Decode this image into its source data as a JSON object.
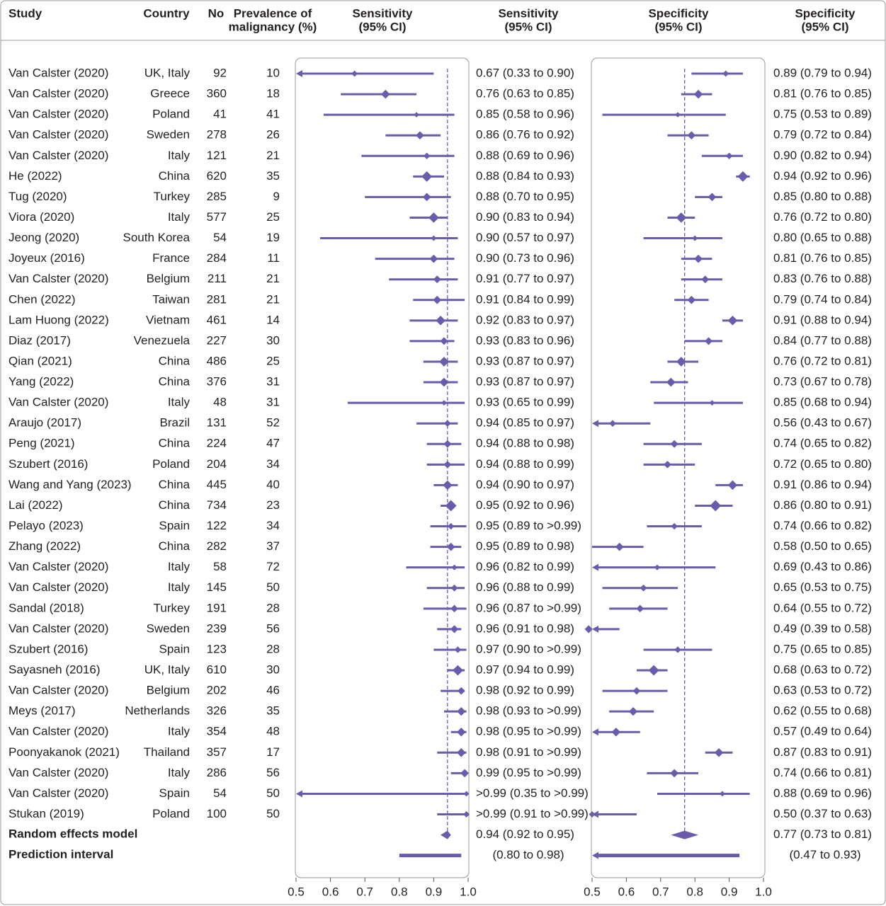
{
  "chart_data": {
    "type": "forest",
    "columns": {
      "study": "Study",
      "country": "Country",
      "n": "No",
      "prevalence": [
        "Prevalence of",
        "malignancy (%)"
      ]
    },
    "categories": [
      "Van Calster (2020)",
      "Van Calster (2020)",
      "Van Calster (2020)",
      "Van Calster (2020)",
      "Van Calster (2020)",
      "He (2022)",
      "Tug (2020)",
      "Viora (2020)",
      "Jeong (2020)",
      "Joyeux (2016)",
      "Van Calster (2020)",
      "Chen (2022)",
      "Lam Huong (2022)",
      "Diaz (2017)",
      "Qian (2021)",
      "Yang (2022)",
      "Van Calster (2020)",
      "Araujo (2017)",
      "Peng (2021)",
      "Szubert (2016)",
      "Wang and Yang (2023)",
      "Lai (2022)",
      "Pelayo (2023)",
      "Zhang (2022)",
      "Van Calster (2020)",
      "Van Calster (2020)",
      "Sandal (2018)",
      "Van Calster (2020)",
      "Szubert (2016)",
      "Sayasneh (2016)",
      "Van Calster (2020)",
      "Meys (2017)",
      "Van Calster (2020)",
      "Poonyakanok (2021)",
      "Van Calster (2020)",
      "Van Calster (2020)",
      "Stukan (2019)"
    ],
    "countries": [
      "UK, Italy",
      "Greece",
      "Poland",
      "Sweden",
      "Italy",
      "China",
      "Turkey",
      "Italy",
      "South Korea",
      "France",
      "Belgium",
      "Taiwan",
      "Vietnam",
      "Venezuela",
      "China",
      "China",
      "Italy",
      "Brazil",
      "China",
      "Poland",
      "China",
      "China",
      "Spain",
      "China",
      "Italy",
      "Italy",
      "Turkey",
      "Sweden",
      "Spain",
      "UK, Italy",
      "Belgium",
      "Netherlands",
      "Italy",
      "Thailand",
      "Italy",
      "Spain",
      "Poland"
    ],
    "n": [
      92,
      360,
      41,
      278,
      121,
      620,
      285,
      577,
      54,
      284,
      211,
      281,
      461,
      227,
      486,
      376,
      48,
      131,
      224,
      204,
      445,
      734,
      122,
      282,
      58,
      145,
      191,
      239,
      123,
      610,
      202,
      326,
      354,
      357,
      286,
      54,
      100
    ],
    "prevalence": [
      10,
      18,
      41,
      26,
      21,
      35,
      9,
      25,
      19,
      11,
      21,
      21,
      14,
      30,
      25,
      31,
      31,
      52,
      47,
      34,
      40,
      23,
      34,
      37,
      72,
      50,
      28,
      56,
      28,
      30,
      46,
      35,
      48,
      17,
      56,
      50,
      50
    ],
    "summary_name": "Random effects model",
    "prediction_name": "Prediction interval",
    "panels": [
      {
        "title": [
          "Sensitivity",
          "(95% CI)"
        ],
        "label_title": [
          "Sensitivity",
          "(95% CI)"
        ],
        "color": "#6b5bab",
        "xlim": [
          0.5,
          1.0
        ],
        "xticks": [
          0.5,
          0.6,
          0.7,
          0.8,
          0.9,
          {
            "value": 1.0,
            "label": "1.0"
          }
        ],
        "values": [
          0.67,
          0.76,
          0.85,
          0.86,
          0.88,
          0.88,
          0.88,
          0.9,
          0.9,
          0.9,
          0.91,
          0.91,
          0.92,
          0.93,
          0.93,
          0.93,
          0.93,
          0.94,
          0.94,
          0.94,
          0.94,
          0.95,
          0.95,
          0.95,
          0.96,
          0.96,
          0.96,
          0.96,
          0.97,
          0.97,
          0.98,
          0.98,
          0.98,
          0.98,
          0.99,
          0.995,
          0.995
        ],
        "lower": [
          0.33,
          0.63,
          0.58,
          0.76,
          0.69,
          0.84,
          0.7,
          0.83,
          0.57,
          0.73,
          0.77,
          0.84,
          0.83,
          0.83,
          0.87,
          0.87,
          0.65,
          0.85,
          0.88,
          0.88,
          0.9,
          0.92,
          0.89,
          0.89,
          0.82,
          0.88,
          0.87,
          0.91,
          0.9,
          0.94,
          0.92,
          0.93,
          0.95,
          0.91,
          0.95,
          0.35,
          0.91
        ],
        "upper": [
          0.9,
          0.85,
          0.96,
          0.92,
          0.96,
          0.93,
          0.95,
          0.94,
          0.97,
          0.96,
          0.97,
          0.99,
          0.97,
          0.96,
          0.97,
          0.97,
          0.99,
          0.97,
          0.98,
          0.99,
          0.97,
          0.96,
          0.995,
          0.98,
          0.99,
          0.99,
          0.995,
          0.98,
          0.995,
          0.99,
          0.99,
          0.995,
          0.995,
          0.995,
          0.995,
          0.995,
          0.995
        ],
        "value_labels": [
          "0.67 (0.33 to 0.90)",
          "0.76 (0.63 to 0.85)",
          "0.85 (0.58 to 0.96)",
          "0.86 (0.76 to 0.92)",
          "0.88 (0.69 to 0.96)",
          "0.88 (0.84 to 0.93)",
          "0.88 (0.70 to 0.95)",
          "0.90 (0.83 to 0.94)",
          "0.90 (0.57 to 0.97)",
          "0.90 (0.73 to 0.96)",
          "0.91 (0.77 to 0.97)",
          "0.91 (0.84 to 0.99)",
          "0.92 (0.83 to 0.97)",
          "0.93 (0.83 to 0.96)",
          "0.93 (0.87 to 0.97)",
          "0.93 (0.87 to 0.97)",
          "0.93 (0.65 to 0.99)",
          "0.94 (0.85 to 0.97)",
          "0.94 (0.88 to 0.98)",
          "0.94 (0.88 to 0.99)",
          "0.94 (0.90 to 0.97)",
          "0.95 (0.92 to 0.96)",
          "0.95 (0.89 to >0.99)",
          "0.95 (0.89 to 0.98)",
          "0.96 (0.82 to 0.99)",
          "0.96 (0.88 to 0.99)",
          "0.96 (0.87 to >0.99)",
          "0.96 (0.91 to 0.98)",
          "0.97 (0.90 to >0.99)",
          "0.97 (0.94 to 0.99)",
          "0.98 (0.92 to 0.99)",
          "0.98 (0.93 to >0.99)",
          "0.98 (0.95 to >0.99)",
          "0.98 (0.91 to >0.99)",
          "0.99 (0.95 to >0.99)",
          ">0.99 (0.35 to >0.99)",
          ">0.99 (0.91 to >0.99)"
        ],
        "pooled": 0.94,
        "pooled_lower": 0.92,
        "pooled_upper": 0.95,
        "pooled_label": "0.94 (0.92 to 0.95)",
        "prediction_lower": 0.8,
        "prediction_upper": 0.98,
        "prediction_label": "(0.80 to 0.98)"
      },
      {
        "title": [
          "Specificity",
          "(95% CI)"
        ],
        "label_title": [
          "Specificity",
          "(95% CI)"
        ],
        "color": "#6b5bab",
        "xlim": [
          0.5,
          1.0
        ],
        "xticks": [
          0.5,
          0.6,
          0.7,
          0.8,
          0.9,
          {
            "value": 1.0,
            "label": "1.0"
          }
        ],
        "values": [
          0.89,
          0.81,
          0.75,
          0.79,
          0.9,
          0.94,
          0.85,
          0.76,
          0.8,
          0.81,
          0.83,
          0.79,
          0.91,
          0.84,
          0.76,
          0.73,
          0.85,
          0.56,
          0.74,
          0.72,
          0.91,
          0.86,
          0.74,
          0.58,
          0.69,
          0.65,
          0.64,
          0.49,
          0.75,
          0.68,
          0.63,
          0.62,
          0.57,
          0.87,
          0.74,
          0.88,
          0.5
        ],
        "lower": [
          0.79,
          0.76,
          0.53,
          0.72,
          0.82,
          0.92,
          0.8,
          0.72,
          0.65,
          0.76,
          0.76,
          0.74,
          0.88,
          0.77,
          0.72,
          0.67,
          0.68,
          0.43,
          0.65,
          0.65,
          0.86,
          0.8,
          0.66,
          0.5,
          0.43,
          0.53,
          0.55,
          0.39,
          0.65,
          0.63,
          0.53,
          0.55,
          0.49,
          0.83,
          0.66,
          0.69,
          0.37
        ],
        "upper": [
          0.94,
          0.85,
          0.89,
          0.84,
          0.94,
          0.96,
          0.88,
          0.8,
          0.88,
          0.85,
          0.88,
          0.84,
          0.94,
          0.88,
          0.81,
          0.78,
          0.94,
          0.67,
          0.82,
          0.8,
          0.94,
          0.91,
          0.82,
          0.65,
          0.86,
          0.75,
          0.72,
          0.58,
          0.85,
          0.72,
          0.72,
          0.68,
          0.64,
          0.91,
          0.81,
          0.96,
          0.63
        ],
        "value_labels": [
          "0.89 (0.79 to 0.94)",
          "0.81 (0.76 to 0.85)",
          "0.75 (0.53 to 0.89)",
          "0.79 (0.72 to 0.84)",
          "0.90 (0.82 to 0.94)",
          "0.94 (0.92 to 0.96)",
          "0.85 (0.80 to 0.88)",
          "0.76 (0.72 to 0.80)",
          "0.80 (0.65 to 0.88)",
          "0.81 (0.76 to 0.85)",
          "0.83 (0.76 to 0.88)",
          "0.79 (0.74 to 0.84)",
          "0.91 (0.88 to 0.94)",
          "0.84 (0.77 to 0.88)",
          "0.76 (0.72 to 0.81)",
          "0.73 (0.67 to 0.78)",
          "0.85 (0.68 to 0.94)",
          "0.56 (0.43 to 0.67)",
          "0.74 (0.65 to 0.82)",
          "0.72 (0.65 to 0.80)",
          "0.91 (0.86 to 0.94)",
          "0.86 (0.80 to 0.91)",
          "0.74 (0.66 to 0.82)",
          "0.58 (0.50 to 0.65)",
          "0.69 (0.43 to 0.86)",
          "0.65 (0.53 to 0.75)",
          "0.64 (0.55 to 0.72)",
          "0.49 (0.39 to 0.58)",
          "0.75 (0.65 to 0.85)",
          "0.68 (0.63 to 0.72)",
          "0.63 (0.53 to 0.72)",
          "0.62 (0.55 to 0.68)",
          "0.57 (0.49 to 0.64)",
          "0.87 (0.83 to 0.91)",
          "0.74 (0.66 to 0.81)",
          "0.88 (0.69 to 0.96)",
          "0.50 (0.37 to 0.63)"
        ],
        "pooled": 0.77,
        "pooled_lower": 0.73,
        "pooled_upper": 0.81,
        "pooled_label": "0.77 (0.73 to 0.81)",
        "prediction_lower": 0.47,
        "prediction_upper": 0.93,
        "prediction_label": "(0.47 to 0.93)"
      }
    ]
  }
}
